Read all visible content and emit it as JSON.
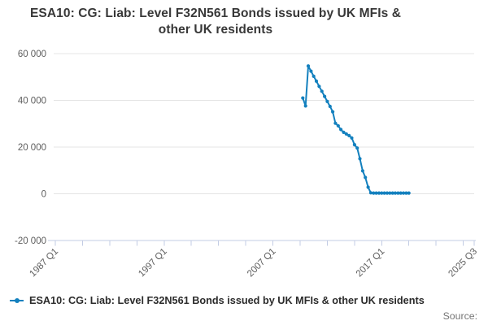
{
  "title": "ESA10: CG: Liab: Level F32N561 Bonds issued by UK MFIs & other UK residents",
  "legend": {
    "label": "ESA10: CG: Liab: Level F32N561 Bonds issued by UK MFIs & other UK residents"
  },
  "source": {
    "label": "Source:"
  },
  "colors": {
    "line": "#1380be",
    "grid": "#e4e4e4",
    "axis": "#c3cce4",
    "tick_label": "#5d5d5d",
    "title": "#383838",
    "legend_text": "#2b2b2b",
    "source_text": "#757575",
    "background": "#ffffff"
  },
  "chart_data": {
    "type": "line",
    "title": "ESA10: CG: Liab: Level F32N561 Bonds issued by UK MFIs & other UK residents",
    "series_name": "ESA10: CG: Liab: Level F32N561 Bonds issued by UK MFIs & other UK residents",
    "marker": "circle",
    "grid": true,
    "legend_position": "bottom-left",
    "x": [
      "2009 Q4",
      "2010 Q1",
      "2010 Q2",
      "2010 Q3",
      "2010 Q4",
      "2011 Q1",
      "2011 Q2",
      "2011 Q3",
      "2011 Q4",
      "2012 Q1",
      "2012 Q2",
      "2012 Q3",
      "2012 Q4",
      "2013 Q1",
      "2013 Q2",
      "2013 Q3",
      "2013 Q4",
      "2014 Q1",
      "2014 Q2",
      "2014 Q3",
      "2014 Q4",
      "2015 Q1",
      "2015 Q2",
      "2015 Q3",
      "2015 Q4",
      "2016 Q1",
      "2016 Q2",
      "2016 Q3",
      "2016 Q4",
      "2017 Q1",
      "2017 Q2",
      "2017 Q3",
      "2017 Q4",
      "2018 Q1",
      "2018 Q2",
      "2018 Q3",
      "2018 Q4",
      "2019 Q1",
      "2019 Q2",
      "2019 Q3"
    ],
    "values": [
      41000,
      37600,
      54700,
      52500,
      50300,
      48200,
      46000,
      43900,
      41700,
      39500,
      37400,
      35100,
      30200,
      29100,
      27500,
      26300,
      25600,
      24900,
      23900,
      21000,
      19600,
      15000,
      9800,
      7000,
      2800,
      400,
      300,
      300,
      300,
      300,
      300,
      300,
      300,
      300,
      300,
      300,
      300,
      300,
      300,
      300
    ],
    "x_axis": {
      "min": "1987 Q1",
      "max": "2025 Q3",
      "total_quarters": 154,
      "minor_tick_step_quarters": 10,
      "labeled_ticks": [
        "1987 Q1",
        "1997 Q1",
        "2007 Q1",
        "2017 Q1",
        "2025 Q3"
      ]
    },
    "y_axis": {
      "min": -20000,
      "max": 60000,
      "tick_step": 20000,
      "tick_values": [
        60000,
        40000,
        20000,
        0,
        -20000
      ],
      "tick_labels": [
        "60 000",
        "40 000",
        "20 000",
        "0",
        "-20 000"
      ]
    }
  }
}
